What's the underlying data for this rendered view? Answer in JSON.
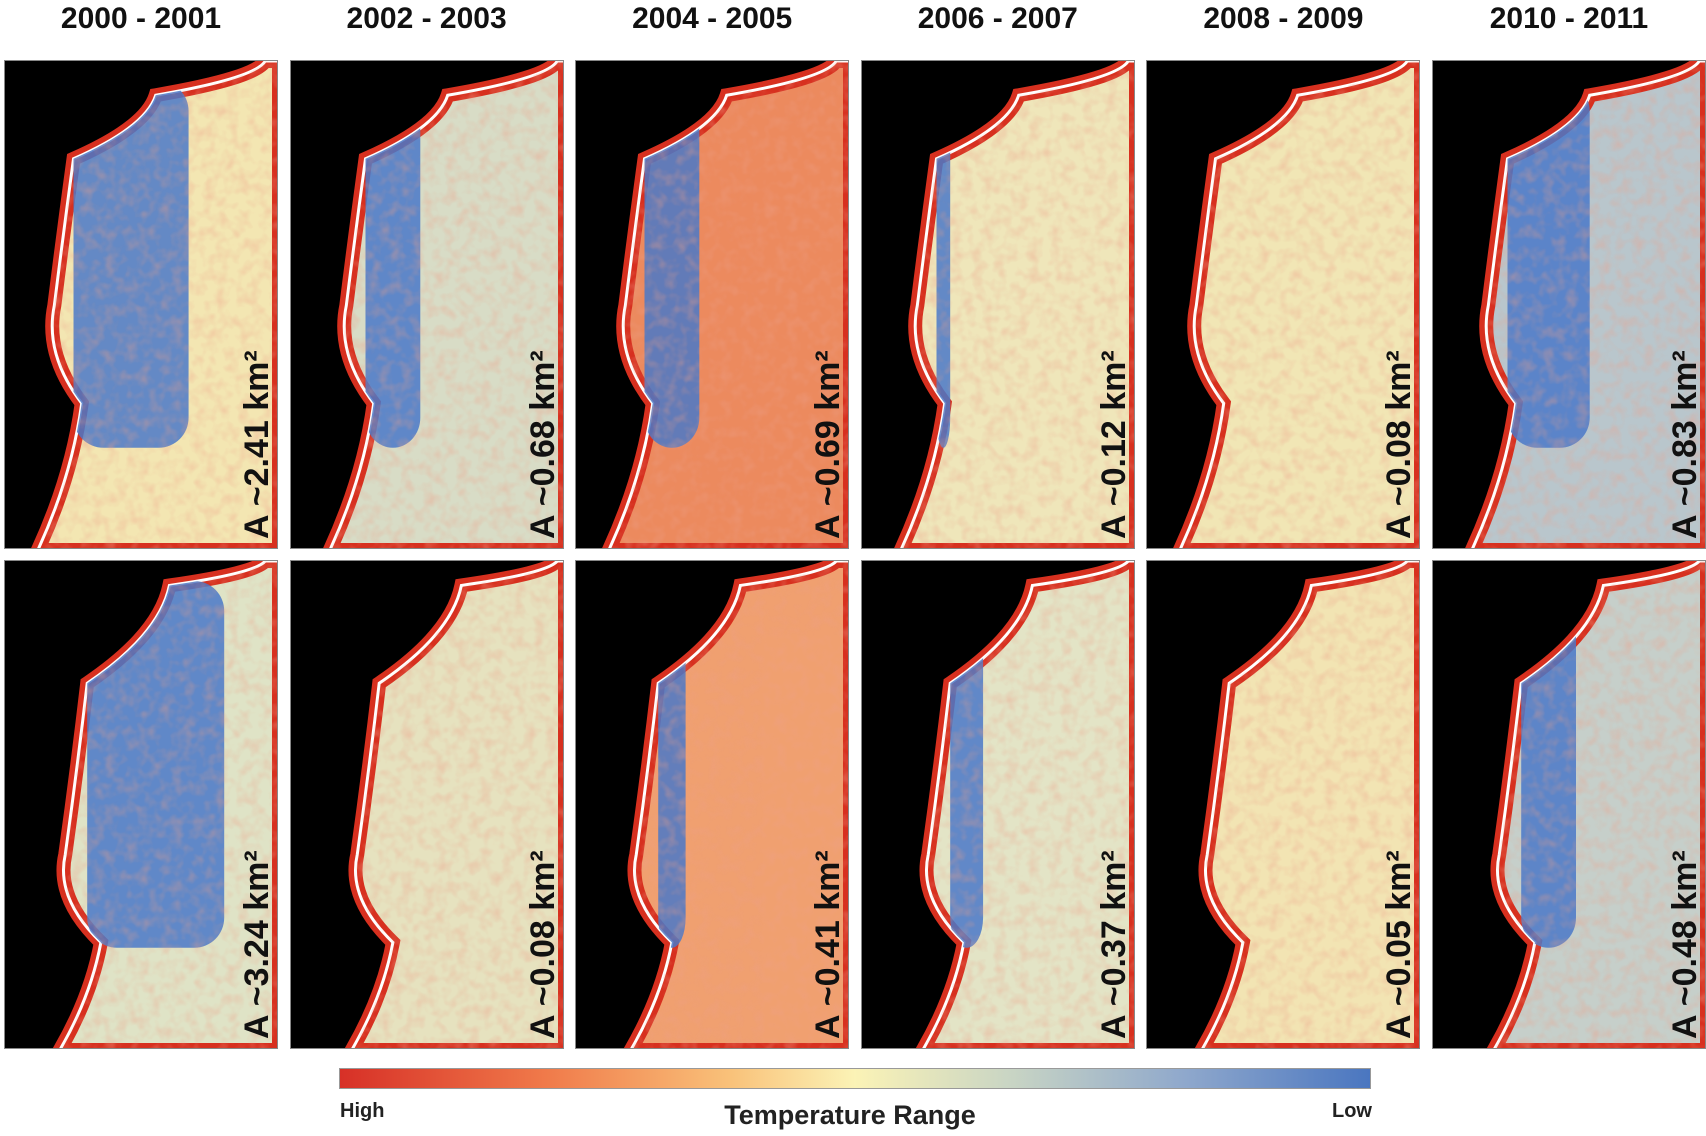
{
  "columns": [
    {
      "title": "2000 - 2001",
      "panels": [
        "A ~2.41 km²",
        "A ~3.24 km²"
      ]
    },
    {
      "title": "2002 - 2003",
      "panels": [
        "A ~0.68 km²",
        "A ~0.08 km²"
      ]
    },
    {
      "title": "2004 - 2005",
      "panels": [
        "A ~0.69 km²",
        "A ~0.41 km²"
      ]
    },
    {
      "title": "2006 - 2007",
      "panels": [
        "A ~0.12 km²",
        "A ~0.37 km²"
      ]
    },
    {
      "title": "2008 - 2009",
      "panels": [
        "A ~0.08 km²",
        "A ~0.05 km²"
      ]
    },
    {
      "title": "2010 - 2011",
      "panels": [
        "A ~0.83 km²",
        "A ~0.48 km²"
      ]
    }
  ],
  "legend": {
    "high": "High",
    "title": "Temperature Range",
    "low": "Low"
  }
}
